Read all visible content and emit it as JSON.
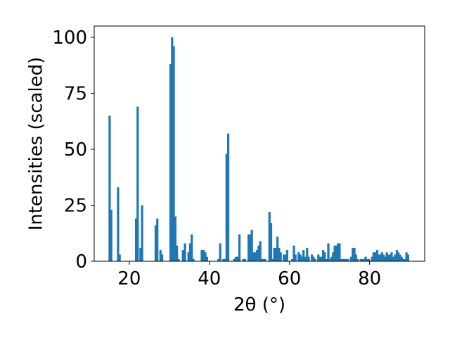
{
  "chart_data": {
    "type": "bar",
    "title": "",
    "xlabel": "2θ (°)",
    "ylabel": "Intensities (scaled)",
    "xlim": [
      11.25,
      93.75
    ],
    "ylim": [
      0,
      105
    ],
    "xticks": [
      20,
      40,
      60,
      80
    ],
    "yticks": [
      0,
      25,
      50,
      75,
      100
    ],
    "grid": false,
    "bar_color": "#1f77b4",
    "x": [
      15.1,
      15.5,
      17.2,
      17.6,
      21.7,
      22.1,
      22.8,
      23.2,
      26.6,
      27.0,
      27.8,
      28.2,
      30.3,
      30.7,
      31.1,
      31.5,
      31.9,
      32.3,
      33.4,
      33.9,
      34.8,
      35.2,
      35.6,
      36.0,
      38.1,
      38.6,
      39.0,
      39.4,
      42.3,
      42.7,
      43.5,
      43.9,
      44.3,
      44.7,
      46.2,
      46.6,
      47.0,
      47.5,
      48.5,
      48.9,
      49.8,
      50.2,
      50.6,
      51.0,
      51.5,
      51.9,
      52.3,
      52.7,
      53.1,
      53.5,
      53.9,
      55.0,
      55.4,
      55.8,
      56.2,
      56.6,
      57.0,
      57.4,
      57.8,
      58.6,
      59.0,
      59.4,
      60.7,
      61.1,
      61.5,
      62.3,
      62.7,
      63.1,
      63.5,
      63.9,
      64.4,
      64.8,
      65.6,
      66.0,
      66.4,
      67.2,
      67.6,
      68.0,
      68.4,
      68.8,
      69.3,
      69.7,
      70.1,
      70.5,
      70.9,
      71.3,
      71.7,
      72.1,
      72.5,
      72.9,
      73.3,
      73.7,
      74.2,
      74.6,
      75.4,
      75.8,
      76.2,
      76.6,
      77.0,
      77.8,
      78.2,
      78.6,
      79.0,
      79.4,
      79.8,
      80.6,
      81.0,
      81.5,
      81.9,
      82.3,
      82.7,
      83.1,
      83.5,
      83.9,
      84.3,
      84.7,
      85.1,
      85.5,
      85.9,
      86.4,
      86.8,
      87.2,
      87.6,
      88.0,
      88.4,
      88.8,
      89.2,
      89.6
    ],
    "values": [
      65,
      23,
      33,
      3,
      19,
      69,
      6,
      25,
      16,
      19,
      5,
      3,
      88,
      100,
      96,
      20,
      7,
      1,
      5,
      8,
      4,
      8,
      12,
      1,
      5,
      5,
      4,
      2,
      1,
      8,
      1,
      1,
      48,
      57,
      1,
      2,
      2,
      12,
      1,
      1,
      12,
      12,
      14,
      4,
      4,
      5,
      7,
      9,
      1,
      1,
      1,
      22,
      17,
      1,
      6,
      6,
      11,
      6,
      4,
      3,
      3,
      5,
      1,
      7,
      3,
      4,
      3,
      2,
      5,
      2,
      6,
      2,
      3,
      2,
      1,
      3,
      2,
      2,
      5,
      4,
      1,
      8,
      1,
      2,
      4,
      7,
      7,
      8,
      8,
      1,
      1,
      1,
      1,
      1,
      2,
      6,
      6,
      3,
      1,
      1,
      1,
      1,
      2,
      1,
      1,
      2,
      4,
      4,
      5,
      3,
      3,
      4,
      3,
      2,
      4,
      3,
      3,
      4,
      2,
      3,
      5,
      4,
      3,
      2,
      1,
      1,
      4,
      3
    ]
  }
}
